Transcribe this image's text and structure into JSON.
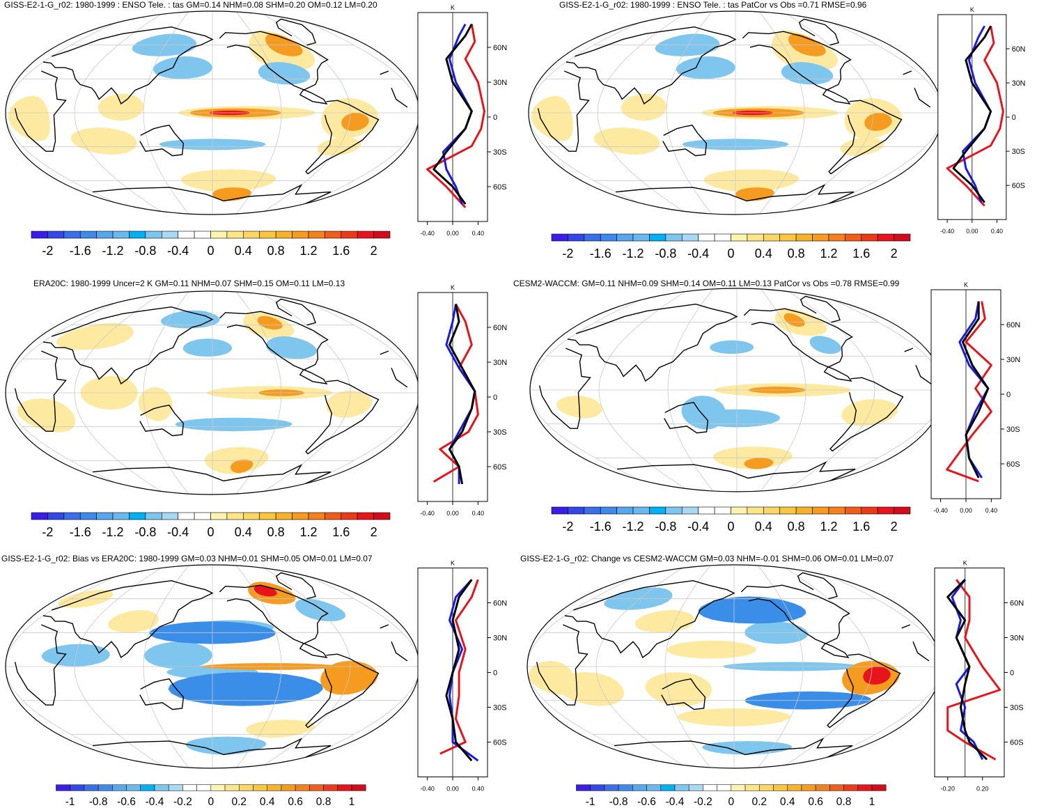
{
  "panels": [
    {
      "id": "p1",
      "title": "GISS-E2-1-G_r02: 1980-1999 : ENSO Tele. : tas GM=0.14 NHM=0.08 SHM=0.20 OM=0.12 LM=0.20",
      "zonal_xticks": [
        "-0.40",
        "0.00",
        "0.40"
      ],
      "zonal_unit": "K",
      "lat_ticks": [
        "60N",
        "30N",
        "0",
        "30S",
        "60S"
      ],
      "colorbar_labels": [
        "-2",
        "-1.6",
        "-1.2",
        "-0.8",
        "-0.4",
        "0",
        "0.4",
        "0.8",
        "1.2",
        "1.6",
        "2"
      ]
    },
    {
      "id": "p2",
      "title": "GISS-E2-1-G_r02: 1980-1999 : ENSO Tele. : tas PatCor vs Obs =0.71 RMSE=0.96",
      "zonal_xticks": [
        "-0.40",
        "0.00",
        "0.40"
      ],
      "zonal_unit": "K",
      "lat_ticks": [
        "60N",
        "30N",
        "0",
        "30S",
        "60S"
      ],
      "colorbar_labels": [
        "-2",
        "-1.6",
        "-1.2",
        "-0.8",
        "-0.4",
        "0",
        "0.4",
        "0.8",
        "1.2",
        "1.6",
        "2"
      ]
    },
    {
      "id": "p3",
      "title": "ERA20C: 1980-1999 Uncer=2 K GM=0.11 NHM=0.07 SHM=0.15 OM=0.11 LM=0.13",
      "zonal_xticks": [
        "-0.40",
        "0.00",
        "0.40"
      ],
      "zonal_unit": "K",
      "lat_ticks": [
        "60N",
        "30N",
        "0",
        "30S",
        "60S"
      ],
      "colorbar_labels": [
        "-2",
        "-1.6",
        "-1.2",
        "-0.8",
        "-0.4",
        "0",
        "0.4",
        "0.8",
        "1.2",
        "1.6",
        "2"
      ]
    },
    {
      "id": "p4",
      "title": "CESM2-WACCM: GM=0.11 NHM=0.09 SHM=0.14 OM=0.11 LM=0.13 PatCor vs Obs =0.78 RMSE=0.99",
      "zonal_xticks": [
        "-0.40",
        "0.00",
        "0.40"
      ],
      "zonal_unit": "K",
      "lat_ticks": [
        "60N",
        "30N",
        "0",
        "30S",
        "60S"
      ],
      "colorbar_labels": [
        "-2",
        "-1.6",
        "-1.2",
        "-0.8",
        "-0.4",
        "0",
        "0.4",
        "0.8",
        "1.2",
        "1.6",
        "2"
      ]
    },
    {
      "id": "p5",
      "title": "GISS-E2-1-G_r02: Bias vs ERA20C: 1980-1999 GM=0.03 NHM=0.01 SHM=0.05 OM=0.01 LM=0.07",
      "zonal_xticks": [
        "-0.40",
        "0.00",
        "0.40"
      ],
      "zonal_unit": "K",
      "lat_ticks": [
        "60N",
        "30N",
        "0",
        "30S",
        "60S"
      ],
      "colorbar_labels": [
        "-1",
        "-0.8",
        "-0.6",
        "-0.4",
        "-0.2",
        "0",
        "0.2",
        "0.4",
        "0.6",
        "0.8",
        "1"
      ]
    },
    {
      "id": "p6",
      "title": "GISS-E2-1-G_r02: Change vs CESM2-WACCM GM=0.03 NHM=-0.01 SHM=0.06 OM=0.01 LM=0.07",
      "zonal_xticks": [
        "-0.20",
        "0.20"
      ],
      "zonal_unit": "K",
      "lat_ticks": [
        "60N",
        "30N",
        "0",
        "30S",
        "60S"
      ],
      "colorbar_labels": [
        "-1",
        "-0.8",
        "-0.6",
        "-0.4",
        "-0.2",
        "0",
        "0.2",
        "0.4",
        "0.6",
        "0.8",
        "1"
      ]
    }
  ],
  "colors": {
    "cold_extreme": "#3a1ee6",
    "cold": "#3b8ee8",
    "cool": "#7ec6ee",
    "neutral": "#ffffff",
    "warm": "#fde9a0",
    "hot": "#f59b20",
    "hot_extreme": "#e8141c",
    "zonal_model": "#e8141c",
    "zonal_obs": "#1a1ae6",
    "zonal_mean": "#000000"
  },
  "colorbar_colors": [
    "#3a1ee6",
    "#3448e6",
    "#3a6fe8",
    "#3f8ae8",
    "#56a7ec",
    "#6ab8ee",
    "#00b0f0",
    "#7ec6ee",
    "#a8d8f2",
    "#ffffff",
    "#ffffff",
    "#fff3b0",
    "#fde58a",
    "#fbd664",
    "#f9c640",
    "#f7b22c",
    "#f59b20",
    "#f2801c",
    "#ee5e1a",
    "#ea3a1a",
    "#e8141c",
    "#d00c1c"
  ]
}
